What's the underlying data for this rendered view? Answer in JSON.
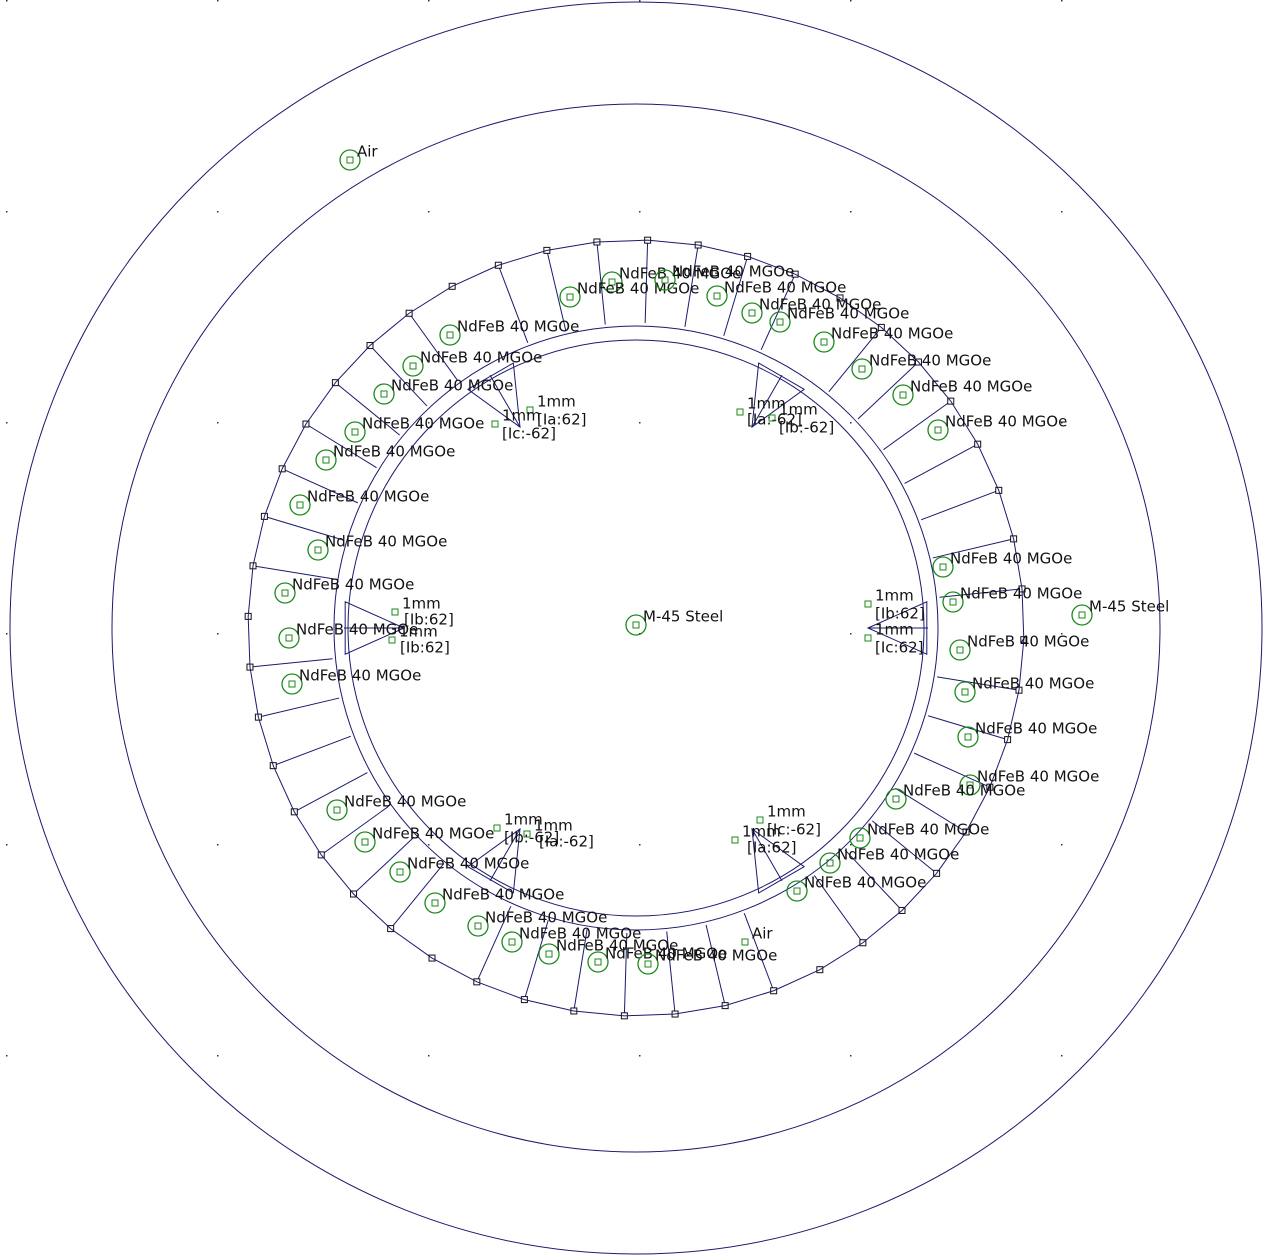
{
  "labels": [
    {
      "text": "Air"
    },
    {
      "text": "M-45 Steel"
    },
    {
      "text": "M-45 Steel"
    },
    {
      "text": "Air"
    },
    {
      "text": "NdFeB 40 MGOe"
    },
    {
      "text": "NdFeB 40 MGOe"
    },
    {
      "text": "NdFeB 40 MGOe"
    },
    {
      "text": "NdFeB 40 MGOe"
    },
    {
      "text": "NdFeB 40 MGOe"
    },
    {
      "text": "NdFeB 40 MGOe"
    },
    {
      "text": "NdFeB 40 MGOe"
    },
    {
      "text": "NdFeB 40 MGOe"
    },
    {
      "text": "NdFeB 40 MGOe"
    },
    {
      "text": "NdFeB 40 MGOe"
    },
    {
      "text": "NdFeB 40 MGOe"
    },
    {
      "text": "NdFeB 40 MGOe"
    },
    {
      "text": "NdFeB 40 MGOe"
    },
    {
      "text": "NdFeB 40 MGOe"
    },
    {
      "text": "NdFeB 40 MGOe"
    },
    {
      "text": "NdFeB 40 MGOe"
    },
    {
      "text": "NdFeB 40 MGOe"
    },
    {
      "text": "NdFeB 40 MGOe"
    },
    {
      "text": "NdFeB 40 MGOe"
    },
    {
      "text": "NdFeB 40 MGOe"
    },
    {
      "text": "NdFeB 40 MGOe"
    },
    {
      "text": "NdFeB 40 MGOe"
    },
    {
      "text": "NdFeB 40 MGOe"
    },
    {
      "text": "NdFeB 40 MGOe"
    },
    {
      "text": "NdFeB 40 MGOe"
    },
    {
      "text": "NdFeB 40 MGOe"
    },
    {
      "text": "NdFeB 40 MGOe"
    },
    {
      "text": "NdFeB 40 MGOe"
    },
    {
      "text": "NdFeB 40 MGOe"
    },
    {
      "text": "NdFeB 40 MGOe"
    },
    {
      "text": "NdFeB 40 MGOe"
    },
    {
      "text": "NdFeB 40 MGOe"
    },
    {
      "text": "NdFeB 40 MGOe"
    },
    {
      "text": "NdFeB 40 MGOe"
    },
    {
      "text": "NdFeB 40 MGOe"
    },
    {
      "text": "NdFeB 40 MGOe"
    },
    {
      "text": "NdFeB 40 MGOe"
    },
    {
      "text": "NdFeB 40 MGOe"
    },
    {
      "text": "NdFeB 40 MGOe"
    },
    {
      "text": "1mm"
    },
    {
      "text": "[Ia:62]"
    },
    {
      "text": "1mm"
    },
    {
      "text": "[Ic:-62]"
    },
    {
      "text": "1mm"
    },
    {
      "text": "[Ia:-62]"
    },
    {
      "text": "1mm"
    },
    {
      "text": "[Ib:-62]"
    },
    {
      "text": "1mm"
    },
    {
      "text": "[Ib:62]"
    },
    {
      "text": "1mm"
    },
    {
      "text": "[Ib:62]"
    },
    {
      "text": "1mm"
    },
    {
      "text": "[Ib:62]"
    },
    {
      "text": "1mm"
    },
    {
      "text": "[Ic:62]"
    },
    {
      "text": "1mm"
    },
    {
      "text": "[Ib:-62]"
    },
    {
      "text": "1mm"
    },
    {
      "text": "[Ia:-62]"
    },
    {
      "text": "1mm"
    },
    {
      "text": "[Ic:-62]"
    },
    {
      "text": "1mm"
    },
    {
      "text": "[Ia:62]"
    }
  ]
}
